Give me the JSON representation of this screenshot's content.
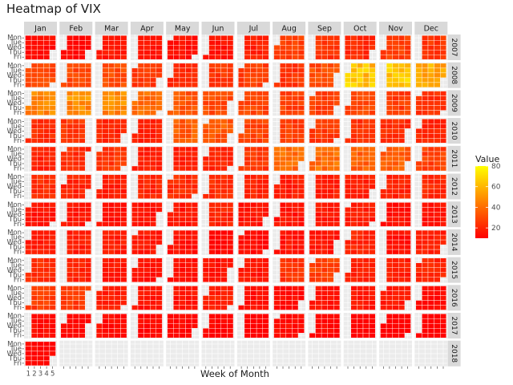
{
  "chart_data": {
    "type": "heatmap",
    "title": "Heatmap of VIX",
    "xlabel": "Week of Month",
    "ylabel": "",
    "facet_columns": [
      "Jan",
      "Feb",
      "Mar",
      "Apr",
      "May",
      "Jun",
      "Jul",
      "Aug",
      "Sep",
      "Oct",
      "Nov",
      "Dec"
    ],
    "facet_rows": [
      "2007",
      "2008",
      "2009",
      "2010",
      "2011",
      "2012",
      "2013",
      "2014",
      "2015",
      "2016",
      "2017",
      "2018"
    ],
    "y_tick_labels": [
      "Mon",
      "Tue",
      "Wed",
      "Thu",
      "Fri"
    ],
    "x_tick_labels": [
      "1",
      "2",
      "3",
      "4",
      "5"
    ],
    "legend": {
      "title": "Value",
      "ticks": [
        20,
        40,
        60,
        80
      ],
      "range": [
        10,
        80
      ],
      "low_color": "#ff0000",
      "high_color": "#ffff00",
      "placement": "right"
    },
    "approx_monthly_mean_values": {
      "2007": [
        12,
        11,
        15,
        14,
        13,
        14,
        17,
        24,
        22,
        19,
        24,
        22
      ],
      "2008": [
        26,
        26,
        28,
        23,
        18,
        22,
        24,
        22,
        28,
        62,
        62,
        55
      ],
      "2009": [
        44,
        46,
        45,
        38,
        31,
        28,
        26,
        25,
        25,
        26,
        24,
        22
      ],
      "2010": [
        20,
        23,
        18,
        17,
        33,
        32,
        26,
        24,
        23,
        21,
        20,
        18
      ],
      "2011": [
        17,
        19,
        22,
        16,
        16,
        18,
        22,
        36,
        38,
        33,
        32,
        25
      ],
      "2012": [
        20,
        18,
        16,
        18,
        20,
        21,
        18,
        16,
        16,
        17,
        17,
        19
      ],
      "2013": [
        14,
        14,
        13,
        14,
        14,
        18,
        14,
        14,
        15,
        16,
        13,
        14
      ],
      "2014": [
        15,
        16,
        16,
        15,
        13,
        11,
        12,
        14,
        14,
        18,
        13,
        16
      ],
      "2015": [
        20,
        17,
        15,
        14,
        13,
        14,
        15,
        22,
        25,
        17,
        16,
        18
      ],
      "2016": [
        24,
        23,
        16,
        14,
        14,
        17,
        13,
        12,
        14,
        15,
        15,
        12
      ],
      "2017": [
        12,
        11,
        12,
        12,
        11,
        11,
        10,
        12,
        11,
        10,
        10,
        10
      ],
      "2018": [
        11,
        null,
        null,
        null,
        null,
        null,
        null,
        null,
        null,
        null,
        null,
        null
      ]
    },
    "grid": true
  }
}
